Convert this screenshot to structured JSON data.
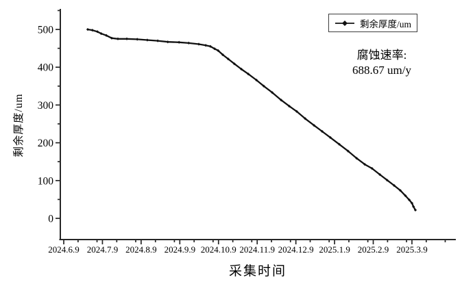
{
  "chart_data": {
    "type": "line",
    "title": "",
    "xlabel": "采集时间",
    "ylabel": "剩余厚度/um",
    "x_tick_labels": [
      "2024.6.9",
      "2024.7.9",
      "2024.8.9",
      "2024.9.9",
      "2024.10.9",
      "2024.11.9",
      "2024.12.9",
      "2025.1.9",
      "2025.2.9",
      "2025.3.9"
    ],
    "y_ticks": [
      0,
      100,
      200,
      300,
      400,
      500
    ],
    "y_minor_ticks": [
      50,
      150,
      250,
      350,
      450,
      550
    ],
    "ylim": [
      -55,
      552
    ],
    "grid": false,
    "legend_position": "top-right",
    "series": [
      {
        "name": "剩余厚度/um",
        "marker": "diamond",
        "color": "#111111",
        "x_unit": "months_after_2024.6.9",
        "points": [
          [
            0.62,
            500
          ],
          [
            0.74,
            498
          ],
          [
            0.87,
            494
          ],
          [
            0.97,
            489
          ],
          [
            1.1,
            484
          ],
          [
            1.24,
            477
          ],
          [
            1.4,
            475
          ],
          [
            1.63,
            475
          ],
          [
            1.9,
            474
          ],
          [
            2.16,
            472
          ],
          [
            2.43,
            470
          ],
          [
            2.69,
            467
          ],
          [
            2.98,
            466
          ],
          [
            3.23,
            464
          ],
          [
            3.49,
            461
          ],
          [
            3.67,
            458
          ],
          [
            3.79,
            455
          ],
          [
            3.9,
            449
          ],
          [
            3.99,
            444
          ],
          [
            4.11,
            433
          ],
          [
            4.25,
            422
          ],
          [
            4.41,
            409
          ],
          [
            4.59,
            395
          ],
          [
            4.77,
            382
          ],
          [
            4.98,
            366
          ],
          [
            5.17,
            350
          ],
          [
            5.39,
            333
          ],
          [
            5.62,
            313
          ],
          [
            5.83,
            297
          ],
          [
            6.02,
            283
          ],
          [
            6.24,
            264
          ],
          [
            6.47,
            246
          ],
          [
            6.68,
            230
          ],
          [
            6.89,
            214
          ],
          [
            7.12,
            196
          ],
          [
            7.35,
            178
          ],
          [
            7.57,
            159
          ],
          [
            7.78,
            143
          ],
          [
            7.97,
            132
          ],
          [
            8.17,
            116
          ],
          [
            8.36,
            101
          ],
          [
            8.54,
            87
          ],
          [
            8.7,
            74
          ],
          [
            8.83,
            60
          ],
          [
            8.93,
            49
          ],
          [
            9.0,
            40
          ],
          [
            9.04,
            31
          ],
          [
            9.09,
            22
          ]
        ]
      }
    ]
  },
  "legend": {
    "label": "剩余厚度/um"
  },
  "annotation": {
    "line1": "腐蚀速率:",
    "line2": "688.67 um/y"
  },
  "colors": {
    "line": "#111111",
    "axis": "#262626",
    "text": "#000000",
    "legend_border": "#3d3d3d",
    "background": "#ffffff"
  }
}
